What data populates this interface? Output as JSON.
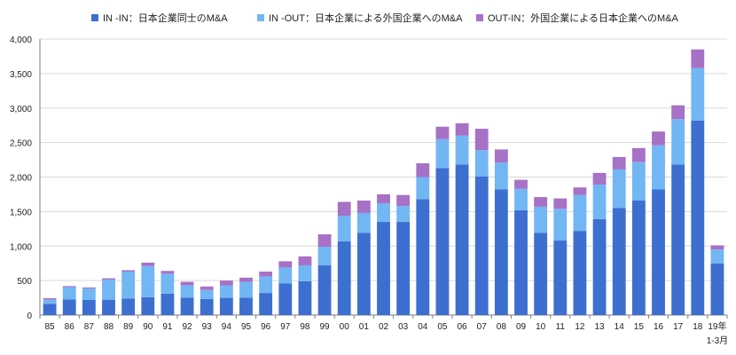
{
  "colors": {
    "in_in": "#3d6fd0",
    "in_out": "#72b6f4",
    "out_in": "#a771c6",
    "grid": "#d9d9d9",
    "axis": "#7f7f7f",
    "text": "#222222"
  },
  "chart_data": {
    "type": "bar",
    "stacked": true,
    "categories": [
      "85",
      "86",
      "87",
      "88",
      "89",
      "90",
      "91",
      "92",
      "93",
      "94",
      "95",
      "96",
      "97",
      "98",
      "99",
      "00",
      "01",
      "02",
      "03",
      "04",
      "05",
      "06",
      "07",
      "08",
      "09",
      "10",
      "11",
      "12",
      "13",
      "14",
      "15",
      "16",
      "17",
      "18",
      "19年"
    ],
    "category_sublabel": "1-3月",
    "series": [
      {
        "name": "IN -IN：日本企業同士のM&A",
        "values": [
          163,
          226,
          219,
          223,
          240,
          260,
          310,
          252,
          234,
          250,
          252,
          320,
          460,
          490,
          720,
          1070,
          1190,
          1350,
          1350,
          1680,
          2130,
          2180,
          2010,
          1820,
          1520,
          1190,
          1080,
          1220,
          1390,
          1550,
          1660,
          1820,
          2180,
          2820,
          750
        ]
      },
      {
        "name": "IN -OUT：日本企業による外国企業へのM&A",
        "values": [
          60,
          180,
          165,
          290,
          390,
          450,
          290,
          180,
          130,
          180,
          230,
          240,
          230,
          230,
          270,
          370,
          290,
          270,
          230,
          320,
          420,
          420,
          380,
          390,
          310,
          380,
          460,
          520,
          500,
          560,
          560,
          640,
          660,
          760,
          200
        ]
      },
      {
        "name": "OUT-IN：外国企業による日本企業へのM&A",
        "values": [
          22,
          14,
          16,
          20,
          20,
          50,
          40,
          50,
          50,
          70,
          60,
          70,
          90,
          130,
          180,
          200,
          180,
          130,
          160,
          200,
          180,
          180,
          310,
          190,
          130,
          140,
          150,
          110,
          170,
          180,
          200,
          200,
          200,
          270,
          60
        ]
      }
    ],
    "ylim": [
      0,
      4000
    ],
    "yticks": [
      "0",
      "500",
      "1,000",
      "1,500",
      "2,000",
      "2,500",
      "3,000",
      "3,500",
      "4,000"
    ],
    "ytick_values": [
      0,
      500,
      1000,
      1500,
      2000,
      2500,
      3000,
      3500,
      4000
    ],
    "grid": true,
    "legend_position": "top",
    "title": "",
    "xlabel": "",
    "ylabel": ""
  }
}
